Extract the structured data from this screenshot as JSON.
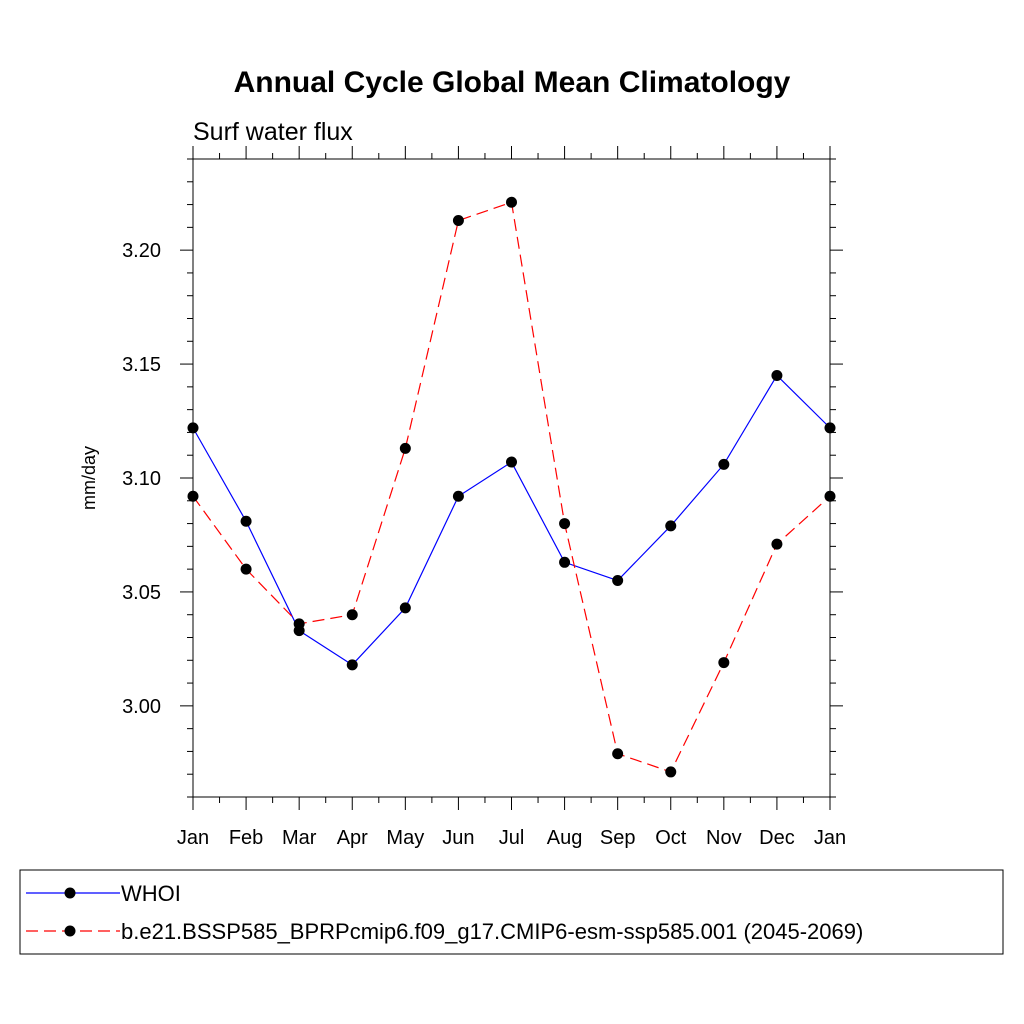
{
  "chart_data": {
    "type": "line",
    "title": "Annual Cycle Global Mean Climatology",
    "subtitle": "Surf water flux",
    "xlabel": "",
    "ylabel": "mm/day",
    "categories": [
      "Jan",
      "Feb",
      "Mar",
      "Apr",
      "May",
      "Jun",
      "Jul",
      "Aug",
      "Sep",
      "Oct",
      "Nov",
      "Dec",
      "Jan"
    ],
    "ylim": [
      2.96,
      3.24
    ],
    "yticks": [
      3.0,
      3.05,
      3.1,
      3.15,
      3.2
    ],
    "ytick_labels": [
      "3.00",
      "3.05",
      "3.10",
      "3.15",
      "3.20"
    ],
    "series": [
      {
        "name": "WHOI",
        "color": "#0000ff",
        "dash": "solid",
        "values": [
          3.122,
          3.081,
          3.033,
          3.018,
          3.043,
          3.092,
          3.107,
          3.063,
          3.055,
          3.079,
          3.106,
          3.145,
          3.122
        ]
      },
      {
        "name": "b.e21.BSSP585_BPRPcmip6.f09_g17.CMIP6-esm-ssp585.001 (2045-2069)",
        "color": "#ff0000",
        "dash": "dashed",
        "values": [
          3.092,
          3.06,
          3.036,
          3.04,
          3.113,
          3.213,
          3.221,
          3.08,
          2.979,
          2.971,
          3.019,
          3.071,
          3.092
        ]
      }
    ],
    "legend_position": "bottom"
  }
}
